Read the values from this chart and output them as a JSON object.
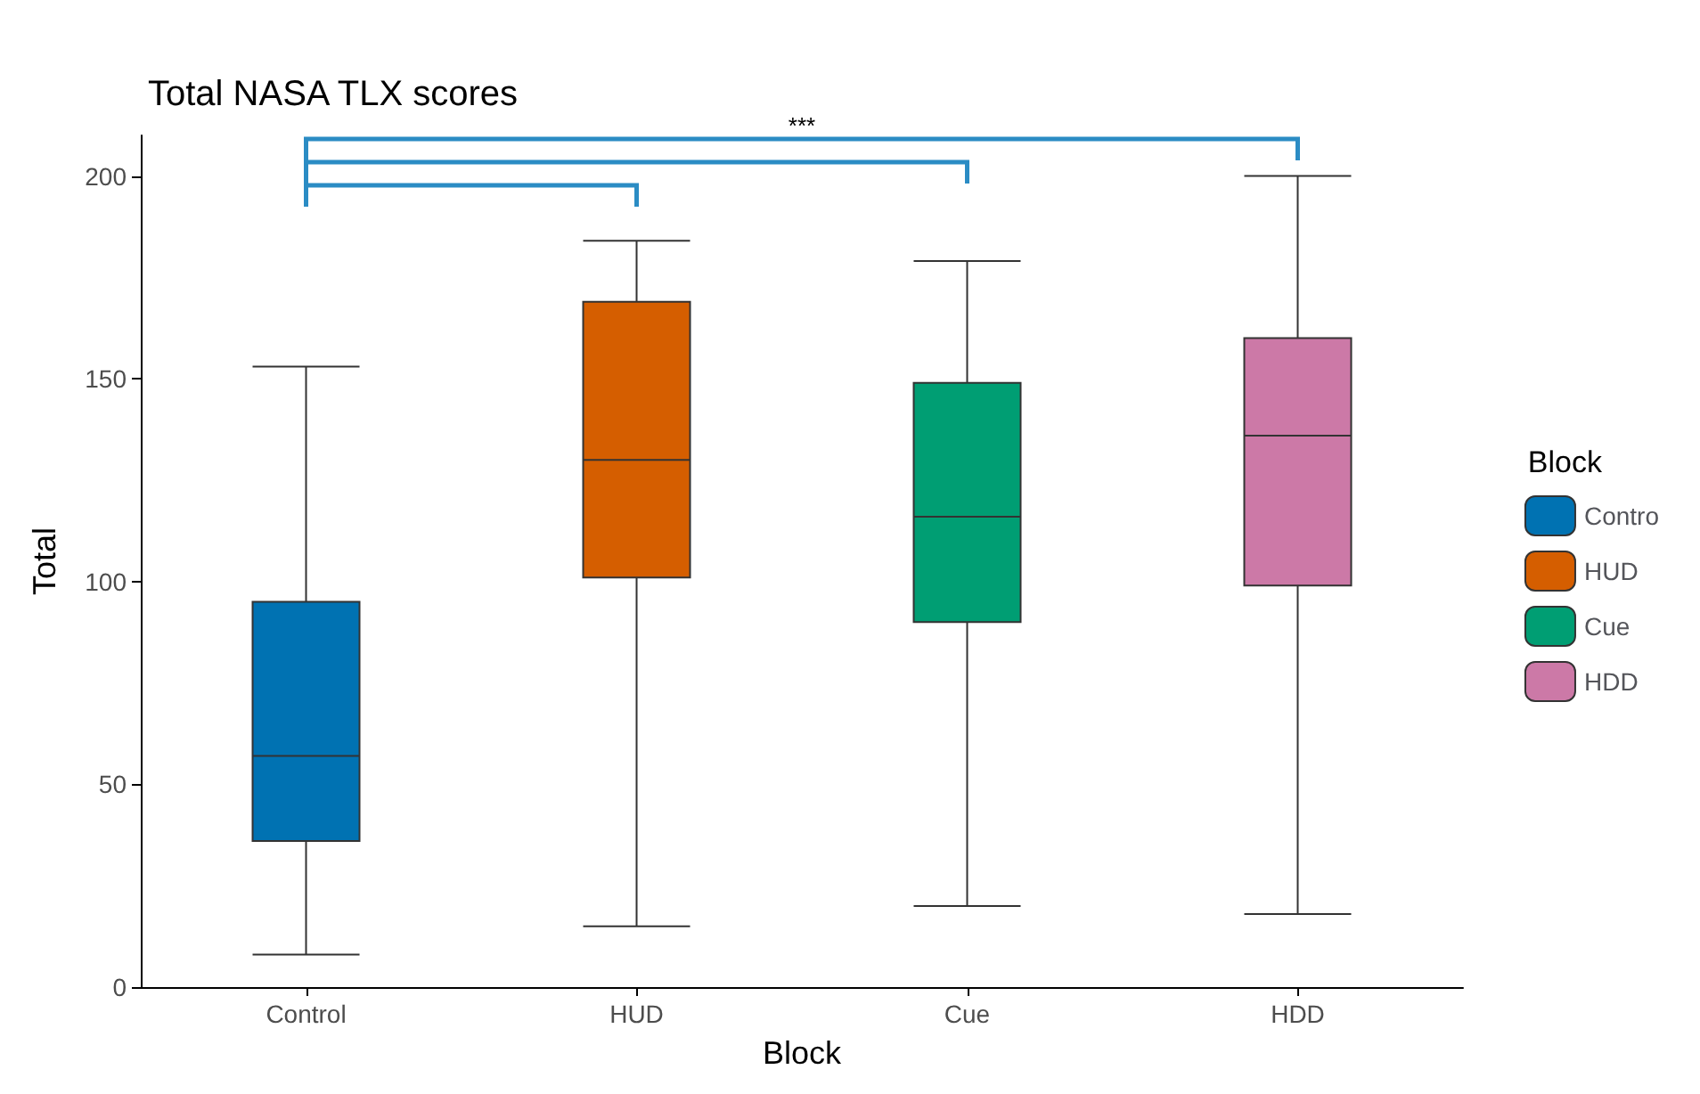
{
  "chart_data": {
    "type": "box",
    "title": "Total NASA TLX scores",
    "xlabel": "Block",
    "ylabel": "Total",
    "legend_title": "Block",
    "categories": [
      "Control",
      "HUD",
      "Cue",
      "HDD"
    ],
    "series": [
      {
        "name": "Contro",
        "color": "#0072b2",
        "boxes": [
          {
            "low": 8,
            "q1": 36,
            "median": 57,
            "q3": 95,
            "high": 153
          },
          null,
          null,
          null
        ]
      },
      {
        "name": "HUD",
        "color": "#d55e00",
        "boxes": [
          null,
          {
            "low": 15,
            "q1": 101,
            "median": 130,
            "q3": 169,
            "high": 184
          },
          null,
          null
        ]
      },
      {
        "name": "Cue",
        "color": "#009e73",
        "boxes": [
          null,
          null,
          {
            "low": 20,
            "q1": 90,
            "median": 116,
            "q3": 149,
            "high": 179
          },
          null
        ]
      },
      {
        "name": "HDD",
        "color": "#cc79a7",
        "boxes": [
          null,
          null,
          null,
          {
            "low": 18,
            "q1": 99,
            "median": 136,
            "q3": 160,
            "high": 200
          }
        ]
      }
    ],
    "ylim": [
      0,
      210
    ],
    "yticks": [
      0,
      50,
      100,
      150,
      200
    ],
    "grid": false,
    "legend": "right",
    "annotations": [
      "***"
    ]
  }
}
